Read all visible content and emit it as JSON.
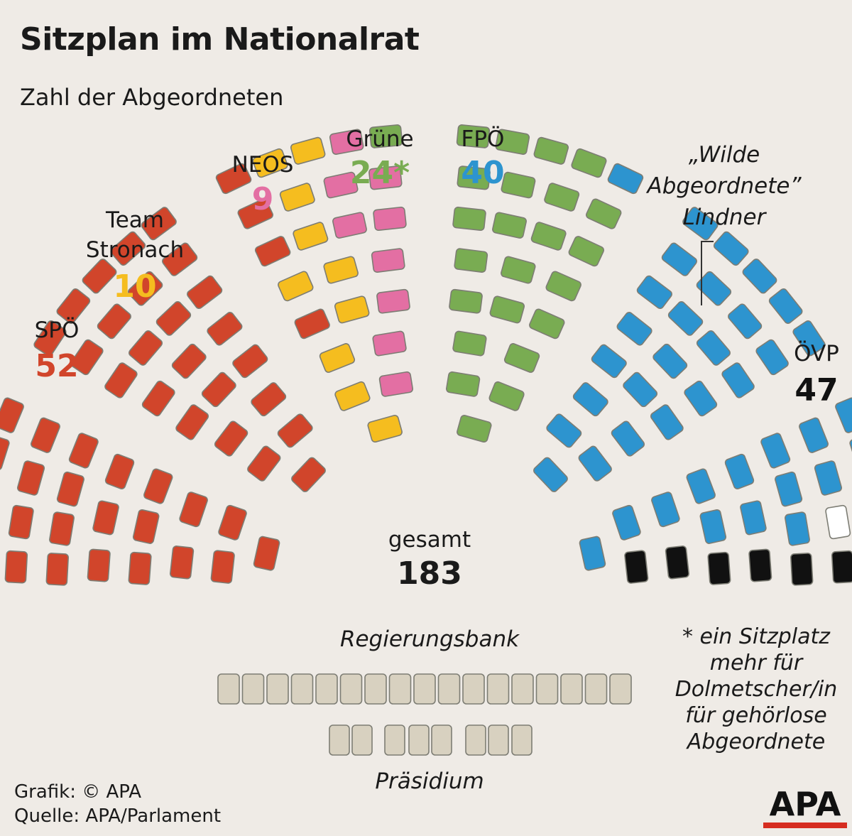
{
  "title": "Sitzplan im Nationalrat",
  "subtitle": "Zahl der Abgeordneten",
  "colors": {
    "background": "#efebe6",
    "SPÖ": "#d1452b",
    "Team Stronach": "#f5bd1f",
    "NEOS": "#e36fa3",
    "Grüne": "#79ac52",
    "FPÖ": "#2d94cf",
    "ÖVP": "#111111",
    "Lindner": "#ffffff",
    "empty": "#d8d1c0",
    "seat_stroke": "#7d7d74",
    "brand_red": "#d62d20"
  },
  "chart_data": {
    "type": "seating_plan",
    "total_label": "gesamt",
    "total": 183,
    "parties": [
      {
        "name": "SPÖ",
        "seats": 52
      },
      {
        "name": "Team Stronach",
        "seats": 10
      },
      {
        "name": "NEOS",
        "seats": 9
      },
      {
        "name": "Grüne",
        "seats": 24,
        "note_marker": "*"
      },
      {
        "name": "FPÖ",
        "seats": 40
      },
      {
        "name": "Wilde Abgeordnete Lindner",
        "seats": 1
      },
      {
        "name": "ÖVP",
        "seats": 47
      }
    ]
  },
  "labels": {
    "spo_name": "SPÖ",
    "spo_count": "52",
    "ts_name_1": "Team",
    "ts_name_2": "Stronach",
    "ts_count": "10",
    "neos_name": "NEOS",
    "neos_count": "9",
    "gruene_name": "Grüne",
    "gruene_count": "24*",
    "fpo_name": "FPÖ",
    "fpo_count": "40",
    "wilde_1": "„Wilde",
    "wilde_2": "Abgeordnete”",
    "wilde_3": "Lindner",
    "ovp_name": "ÖVP",
    "ovp_count": "47",
    "total_word": "gesamt",
    "total_number": "183",
    "regierungsbank": "Regierungsbank",
    "praesidium": "Präsidium"
  },
  "footnote": {
    "line1": "* ein Sitzplatz",
    "line2": "mehr für",
    "line3": "Dolmetscher/in",
    "line4": "für gehörlose",
    "line5": "Abgeordnete"
  },
  "footer": {
    "credit": "Grafik: © APA",
    "source": "Quelle: APA/Parlament"
  },
  "logo": "APA"
}
